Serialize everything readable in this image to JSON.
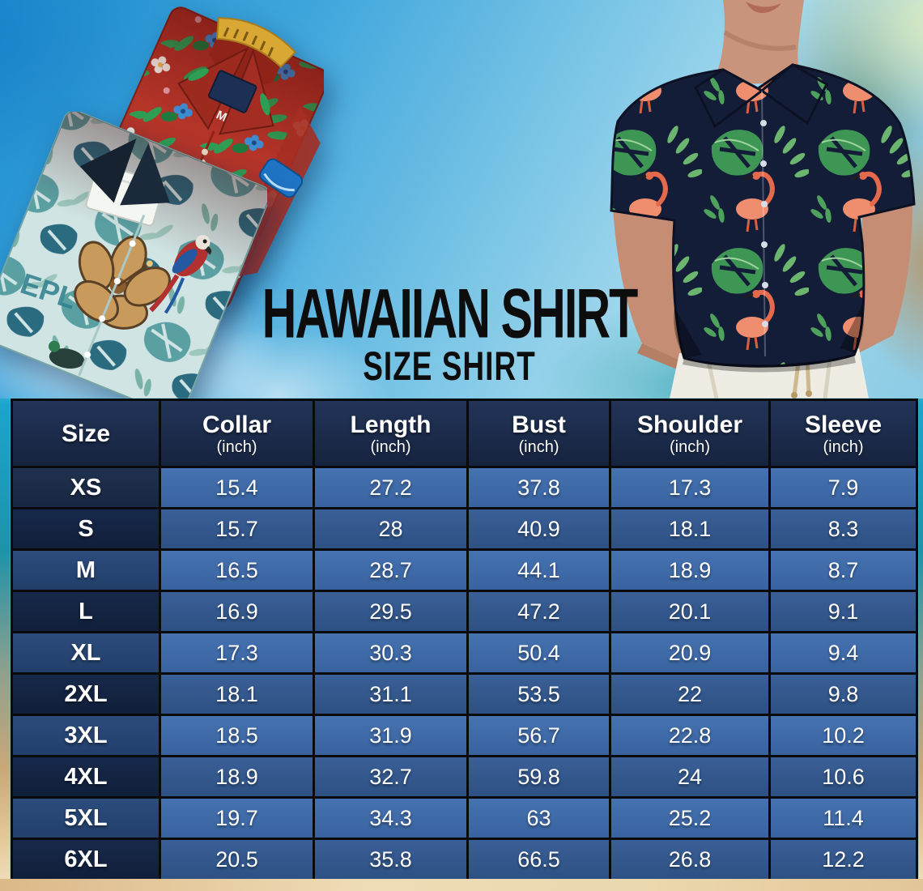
{
  "hero": {
    "title": "HAWAIIAN SHIRT",
    "subtitle": "SIZE SHIRT",
    "red_shirt_size_tag": "M",
    "teal_shirt_print_text": "EPL"
  },
  "table": {
    "columns": [
      {
        "label": "Size",
        "unit": ""
      },
      {
        "label": "Collar",
        "unit": "(inch)"
      },
      {
        "label": "Length",
        "unit": "(inch)"
      },
      {
        "label": "Bust",
        "unit": "(inch)"
      },
      {
        "label": "Shoulder",
        "unit": "(inch)"
      },
      {
        "label": "Sleeve",
        "unit": "(inch)"
      }
    ],
    "rows": [
      {
        "size": "XS",
        "values": [
          "15.4",
          "27.2",
          "37.8",
          "17.3",
          "7.9"
        ]
      },
      {
        "size": "S",
        "values": [
          "15.7",
          "28",
          "40.9",
          "18.1",
          "8.3"
        ]
      },
      {
        "size": "M",
        "values": [
          "16.5",
          "28.7",
          "44.1",
          "18.9",
          "8.7"
        ]
      },
      {
        "size": "L",
        "values": [
          "16.9",
          "29.5",
          "47.2",
          "20.1",
          "9.1"
        ]
      },
      {
        "size": "XL",
        "values": [
          "17.3",
          "30.3",
          "50.4",
          "20.9",
          "9.4"
        ]
      },
      {
        "size": "2XL",
        "values": [
          "18.1",
          "31.1",
          "53.5",
          "22",
          "9.8"
        ]
      },
      {
        "size": "3XL",
        "values": [
          "18.5",
          "31.9",
          "56.7",
          "22.8",
          "10.2"
        ]
      },
      {
        "size": "4XL",
        "values": [
          "18.9",
          "32.7",
          "59.8",
          "24",
          "10.6"
        ]
      },
      {
        "size": "5XL",
        "values": [
          "19.7",
          "34.3",
          "63",
          "25.2",
          "11.4"
        ]
      },
      {
        "size": "6XL",
        "values": [
          "20.5",
          "35.8",
          "66.5",
          "26.8",
          "12.2"
        ]
      }
    ]
  },
  "chart_data": {
    "type": "table",
    "title": "HAWAIIAN SHIRT",
    "subtitle": "SIZE SHIRT",
    "columns": [
      "Size",
      "Collar (inch)",
      "Length (inch)",
      "Bust (inch)",
      "Shoulder (inch)",
      "Sleeve (inch)"
    ],
    "rows": [
      [
        "XS",
        15.4,
        27.2,
        37.8,
        17.3,
        7.9
      ],
      [
        "S",
        15.7,
        28,
        40.9,
        18.1,
        8.3
      ],
      [
        "M",
        16.5,
        28.7,
        44.1,
        18.9,
        8.7
      ],
      [
        "L",
        16.9,
        29.5,
        47.2,
        20.1,
        9.1
      ],
      [
        "XL",
        17.3,
        30.3,
        50.4,
        20.9,
        9.4
      ],
      [
        "2XL",
        18.1,
        31.1,
        53.5,
        22,
        9.8
      ],
      [
        "3XL",
        18.5,
        31.9,
        56.7,
        22.8,
        10.2
      ],
      [
        "4XL",
        18.9,
        32.7,
        59.8,
        24,
        10.6
      ],
      [
        "5XL",
        19.7,
        34.3,
        63,
        25.2,
        11.4
      ],
      [
        "6XL",
        20.5,
        35.8,
        66.5,
        26.8,
        12.2
      ]
    ],
    "layout_hints": {
      "header_bg": "dark navy",
      "row_alternation": true,
      "grid": true
    }
  },
  "colors": {
    "header_bg": "#1a2946",
    "row_light": "#3c68a6",
    "row_dark": "#2f5587",
    "size_col_dark": "#13274a",
    "size_col_light": "#2b4d80",
    "grid_border": "#0a0a0a",
    "sky_blue": "#2f9fd8",
    "sand": "#e9d2a4",
    "title_text": "#0d0d0d",
    "table_text": "#ffffff"
  }
}
